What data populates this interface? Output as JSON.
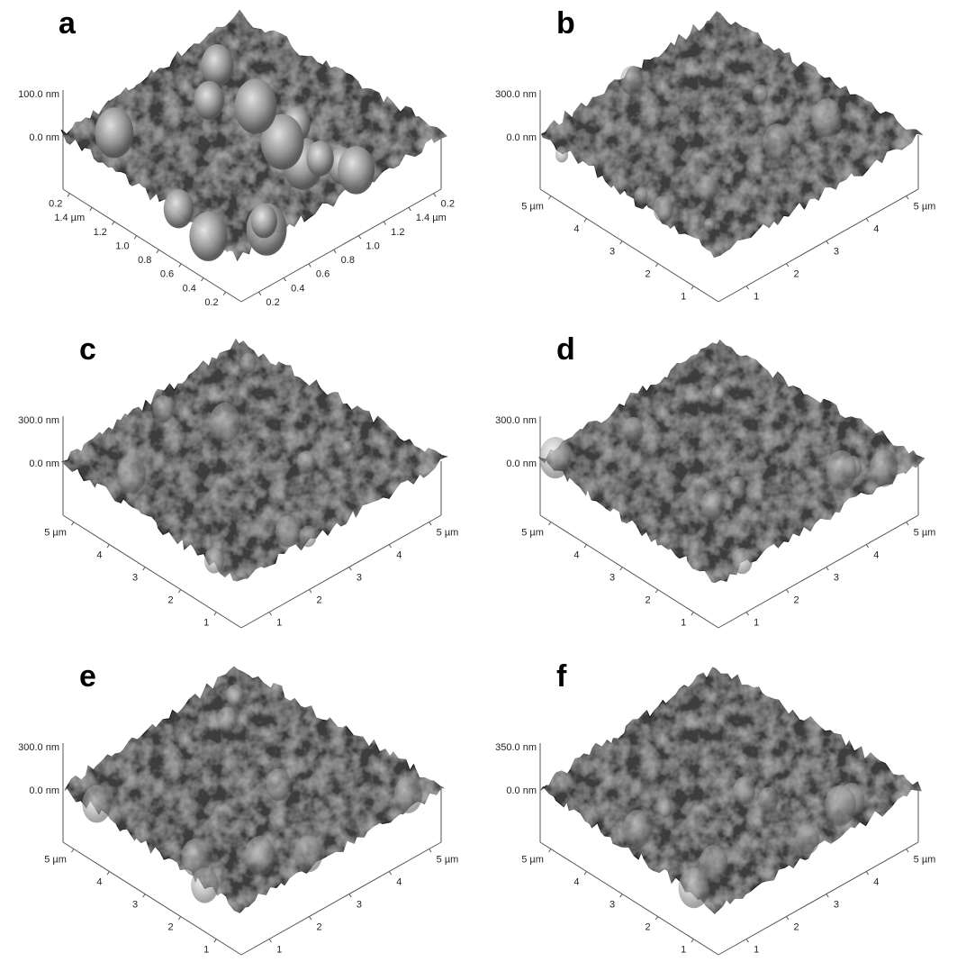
{
  "panels": [
    {
      "label": "a",
      "z_top": "100.0 nm",
      "z_zero": "0.0 nm",
      "left_ticks": [
        "0.2",
        "1.4 µm",
        "1.2",
        "1.0",
        "0.8",
        "0.6",
        "0.4",
        "0.2"
      ],
      "right_ticks": [
        "0.2",
        "1.4 µm",
        "1.2",
        "1.0",
        "0.8",
        "0.6",
        "0.4",
        "0.2"
      ]
    },
    {
      "label": "b",
      "z_top": "300.0 nm",
      "z_zero": "0.0 nm",
      "left_ticks": [
        "5 µm",
        "4",
        "3",
        "2",
        "1"
      ],
      "right_ticks": [
        "5 µm",
        "4",
        "3",
        "2",
        "1"
      ]
    },
    {
      "label": "c",
      "z_top": "300.0 nm",
      "z_zero": "0.0 nm",
      "left_ticks": [
        "5 µm",
        "4",
        "3",
        "2",
        "1"
      ],
      "right_ticks": [
        "5 µm",
        "4",
        "3",
        "2",
        "1"
      ]
    },
    {
      "label": "d",
      "z_top": "300.0 nm",
      "z_zero": "0.0 nm",
      "left_ticks": [
        "5 µm",
        "4",
        "3",
        "2",
        "1"
      ],
      "right_ticks": [
        "5 µm",
        "4",
        "3",
        "2",
        "1"
      ]
    },
    {
      "label": "e",
      "z_top": "300.0 nm",
      "z_zero": "0.0 nm",
      "left_ticks": [
        "5 µm",
        "4",
        "3",
        "2",
        "1"
      ],
      "right_ticks": [
        "5 µm",
        "4",
        "3",
        "2",
        "1"
      ]
    },
    {
      "label": "f",
      "z_top": "350.0 nm",
      "z_zero": "0.0 nm",
      "left_ticks": [
        "5 µm",
        "4",
        "3",
        "2",
        "1"
      ],
      "right_ticks": [
        "5 µm",
        "4",
        "3",
        "2",
        "1"
      ]
    }
  ]
}
